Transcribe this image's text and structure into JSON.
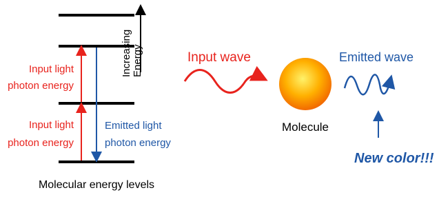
{
  "energy_diagram": {
    "axis_label": [
      "Increasing",
      "Energy"
    ],
    "upper_absorption": [
      "Input light",
      "photon energy"
    ],
    "lower_absorption": [
      "Input light",
      "photon energy"
    ],
    "emission": [
      "Emitted light",
      "photon energy"
    ],
    "caption": "Molecular energy levels"
  },
  "process": {
    "input": "Input wave",
    "molecule": "Molecule",
    "output": "Emitted wave",
    "callout": "New color!!!"
  }
}
